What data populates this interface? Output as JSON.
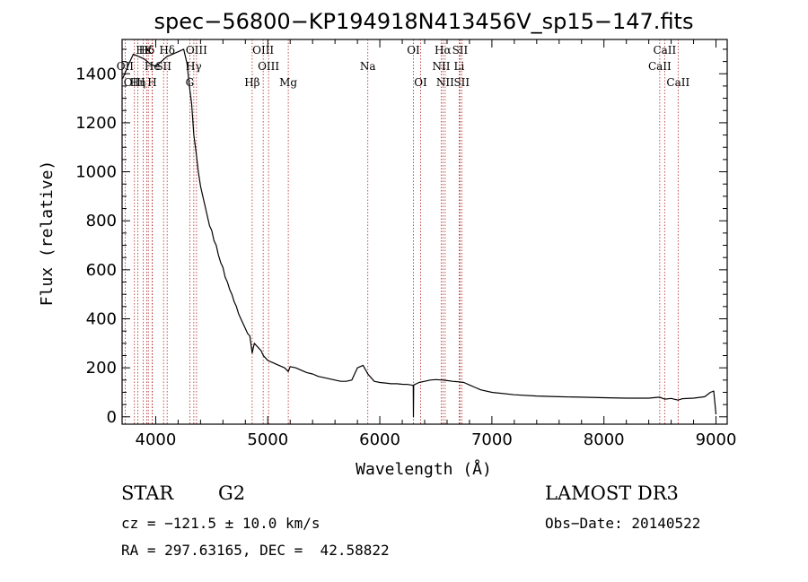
{
  "chart_data": {
    "type": "line",
    "title": "spec−56800−KP194918N413456V_sp15−147.fits",
    "xlabel": "Wavelength (Å)",
    "ylabel": "Flux (relative)",
    "xlim": [
      3700,
      9100
    ],
    "ylim": [
      -30,
      1540
    ],
    "x_ticks": [
      4000,
      5000,
      6000,
      7000,
      8000,
      9000
    ],
    "y_ticks": [
      0,
      200,
      400,
      600,
      800,
      1000,
      1200,
      1400
    ],
    "series": [
      {
        "name": "flux",
        "x": [
          3705,
          3760,
          3800,
          3850,
          3900,
          3950,
          4000,
          4050,
          4100,
          4150,
          4200,
          4250,
          4280,
          4300,
          4320,
          4340,
          4360,
          4380,
          4400,
          4420,
          4440,
          4460,
          4480,
          4500,
          4520,
          4540,
          4560,
          4580,
          4600,
          4620,
          4640,
          4660,
          4680,
          4700,
          4720,
          4740,
          4760,
          4780,
          4800,
          4820,
          4840,
          4861,
          4880,
          4900,
          4920,
          4940,
          4960,
          4980,
          5000,
          5050,
          5100,
          5150,
          5183,
          5200,
          5250,
          5300,
          5350,
          5400,
          5450,
          5500,
          5550,
          5600,
          5650,
          5700,
          5750,
          5800,
          5850,
          5893,
          5950,
          6000,
          6050,
          6100,
          6150,
          6200,
          6250,
          6298,
          6300,
          6302,
          6350,
          6400,
          6450,
          6500,
          6563,
          6600,
          6650,
          6700,
          6750,
          6800,
          6850,
          6900,
          7000,
          7200,
          7400,
          7600,
          7800,
          8000,
          8200,
          8400,
          8498,
          8542,
          8600,
          8662,
          8700,
          8800,
          8900,
          8950,
          8980,
          9000
        ],
        "values": [
          1380,
          1440,
          1480,
          1470,
          1460,
          1440,
          1430,
          1450,
          1470,
          1480,
          1490,
          1500,
          1440,
          1350,
          1280,
          1150,
          1080,
          1000,
          940,
          900,
          860,
          820,
          780,
          760,
          720,
          700,
          660,
          630,
          610,
          570,
          550,
          520,
          500,
          470,
          450,
          420,
          400,
          380,
          360,
          340,
          330,
          260,
          300,
          290,
          280,
          270,
          250,
          240,
          230,
          220,
          210,
          200,
          185,
          205,
          200,
          190,
          180,
          175,
          165,
          160,
          155,
          150,
          145,
          145,
          150,
          200,
          210,
          175,
          145,
          140,
          138,
          135,
          135,
          133,
          132,
          128,
          0,
          130,
          140,
          145,
          150,
          152,
          150,
          148,
          145,
          143,
          140,
          130,
          120,
          110,
          100,
          90,
          85,
          82,
          80,
          78,
          76,
          76,
          80,
          72,
          75,
          68,
          74,
          76,
          82,
          100,
          105,
          10
        ]
      }
    ],
    "spectral_lines": [
      {
        "label": "Hε",
        "x": 3889,
        "row": 0
      },
      {
        "label": "Hδ",
        "x": 3920,
        "row": 0
      },
      {
        "label": "K",
        "x": 3934,
        "row": 0
      },
      {
        "label": "Hδ",
        "x": 4102,
        "row": 0
      },
      {
        "label": "OIII",
        "x": 4364,
        "row": 0
      },
      {
        "label": "OIII",
        "x": 4959,
        "row": 0
      },
      {
        "label": "OI",
        "x": 6300,
        "row": 0
      },
      {
        "label": "Hα",
        "x": 6563,
        "row": 0
      },
      {
        "label": "SII",
        "x": 6716,
        "row": 0
      },
      {
        "label": "CaII",
        "x": 8542,
        "row": 0
      },
      {
        "label": "OII",
        "x": 3727,
        "row": 1
      },
      {
        "label": "He",
        "x": 3970,
        "row": 1
      },
      {
        "label": "SII",
        "x": 4070,
        "row": 1
      },
      {
        "label": "Hγ",
        "x": 4340,
        "row": 1
      },
      {
        "label": "OIII",
        "x": 5007,
        "row": 1
      },
      {
        "label": "Na",
        "x": 5893,
        "row": 1
      },
      {
        "label": "NII",
        "x": 6548,
        "row": 1
      },
      {
        "label": "Li",
        "x": 6708,
        "row": 1
      },
      {
        "label": "CaII",
        "x": 8498,
        "row": 1
      },
      {
        "label": "OIII",
        "x": 3810,
        "row": 2
      },
      {
        "label": "Hη",
        "x": 3840,
        "row": 2
      },
      {
        "label": "H",
        "x": 3968,
        "row": 2
      },
      {
        "label": "G",
        "x": 4304,
        "row": 2
      },
      {
        "label": "Hβ",
        "x": 4861,
        "row": 2
      },
      {
        "label": "Mg",
        "x": 5183,
        "row": 2
      },
      {
        "label": "OI",
        "x": 6364,
        "row": 2
      },
      {
        "label": "NII",
        "x": 6583,
        "row": 2
      },
      {
        "label": "SII",
        "x": 6731,
        "row": 2
      },
      {
        "label": "CaII",
        "x": 8662,
        "row": 2
      }
    ]
  },
  "info": {
    "object_class": "STAR",
    "subclass": "G2",
    "survey": "LAMOST DR3",
    "redshift": "cz = −121.5 ± 10.0 km/s",
    "obs_date": "Obs−Date: 20140522",
    "coords": "RA = 297.63165, DEC =  42.58822"
  }
}
